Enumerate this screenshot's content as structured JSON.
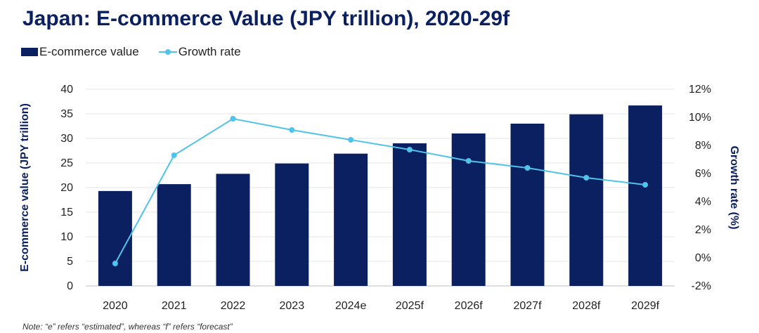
{
  "chart_data": {
    "type": "bar",
    "title": "Japan: E-commerce Value (JPY trillion), 2020-29f",
    "categories": [
      "2020",
      "2021",
      "2022",
      "2023",
      "2024e",
      "2025f",
      "2026f",
      "2027f",
      "2028f",
      "2029f"
    ],
    "series": [
      {
        "name": "E-commerce value",
        "type": "bar",
        "axis": "left",
        "color": "#0b2060",
        "values": [
          19.3,
          20.7,
          22.8,
          24.9,
          26.9,
          29.0,
          31.0,
          33.0,
          34.9,
          36.7
        ]
      },
      {
        "name": "Growth rate",
        "type": "line",
        "axis": "right",
        "color": "#4fc3ea",
        "values": [
          -0.4,
          7.3,
          9.9,
          9.1,
          8.4,
          7.7,
          6.9,
          6.4,
          5.7,
          5.2
        ]
      }
    ],
    "ylabel": "E-commerce value (JPY trillion)",
    "ylim": [
      0,
      40
    ],
    "yticks": [
      "0",
      "5",
      "10",
      "15",
      "20",
      "25",
      "30",
      "35",
      "40"
    ],
    "y2label": "Growth rate (%)",
    "y2lim": [
      -2,
      12
    ],
    "y2ticks": [
      "-2%",
      "0%",
      "2%",
      "4%",
      "6%",
      "8%",
      "10%",
      "12%"
    ],
    "grid": true,
    "legend_position": "top-left"
  },
  "note": "Note: “e” refers “estimated”, whereas “f” refers “forecast”"
}
